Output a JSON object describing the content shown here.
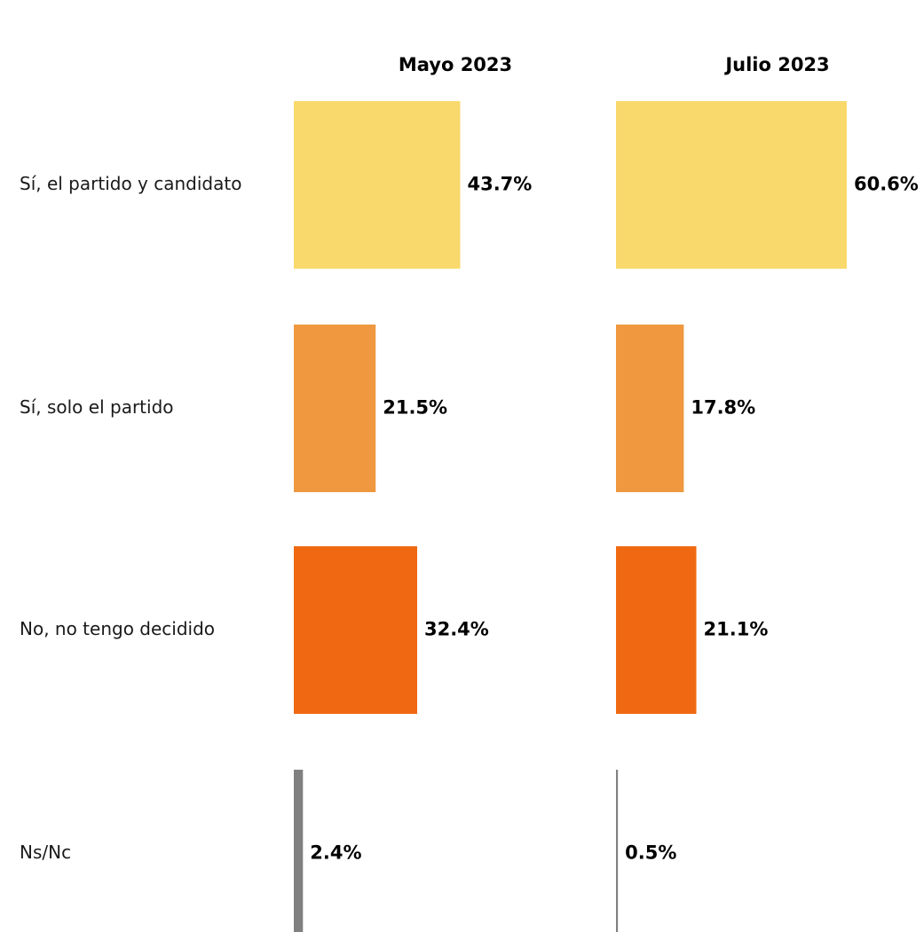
{
  "chart_data": {
    "type": "bar",
    "orientation": "horizontal",
    "layout": "small-multiples",
    "categories": [
      "Sí, el partido y candidato",
      "Sí, solo el partido",
      "No, no tengo decidido",
      "Ns/Nc"
    ],
    "series": [
      {
        "name": "Mayo 2023",
        "values": [
          43.7,
          21.5,
          32.4,
          2.4
        ],
        "labels": [
          "43.7%",
          "21.5%",
          "32.4%",
          "2.4%"
        ]
      },
      {
        "name": "Julio 2023",
        "values": [
          60.6,
          17.8,
          21.1,
          0.5
        ],
        "labels": [
          "60.6%",
          "17.8%",
          "21.1%",
          "0.5%"
        ]
      }
    ],
    "category_colors": [
      "#F9D96B",
      "#EF983F",
      "#F06912",
      "#808080"
    ],
    "unit": "%",
    "xlim": [
      0,
      100
    ],
    "grid": false,
    "legend": "none"
  }
}
